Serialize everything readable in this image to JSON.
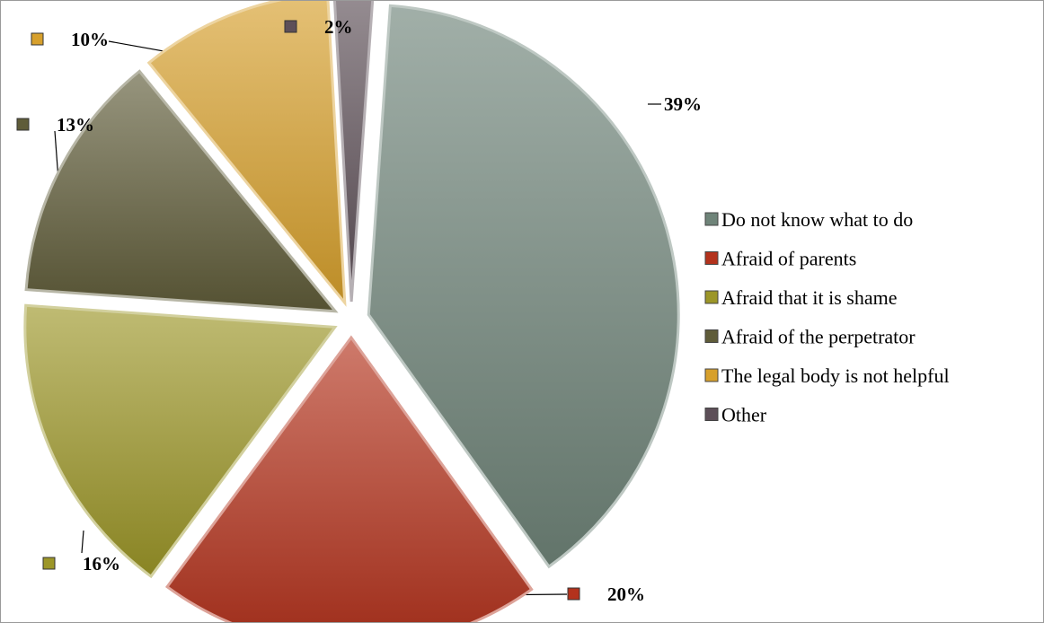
{
  "chart_data": {
    "type": "pie",
    "title": "",
    "categories": [
      "Do not know what to do",
      "Afraid of parents",
      "Afraid that it is shame",
      "Afraid of the perpetrator",
      "The legal body is not helpful",
      "Other"
    ],
    "values": [
      39,
      20,
      16,
      13,
      10,
      2
    ],
    "data_labels": [
      "39%",
      "20%",
      "16%",
      "13%",
      "10%",
      "2%"
    ],
    "colors": [
      "#6f8479",
      "#b3321c",
      "#9c9628",
      "#5f5c39",
      "#d7a02c",
      "#5d4f58"
    ],
    "exploded": true,
    "legend_position": "right"
  }
}
